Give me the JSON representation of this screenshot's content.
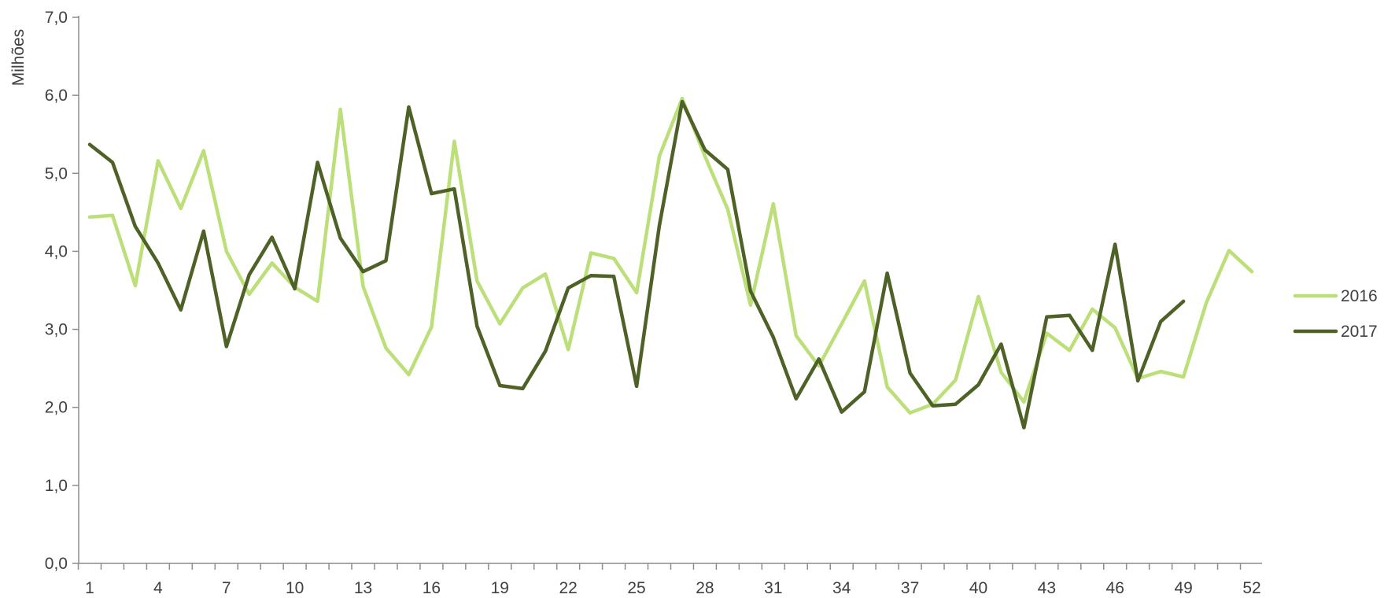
{
  "chart_data": {
    "type": "line",
    "title": "",
    "xlabel": "",
    "ylabel": "Milhões",
    "ylim": [
      0,
      7
    ],
    "y_ticks": [
      "0,0",
      "1,0",
      "2,0",
      "3,0",
      "4,0",
      "5,0",
      "6,0",
      "7,0"
    ],
    "x_range": [
      1,
      52
    ],
    "x_tick_labels": [
      "1",
      "4",
      "7",
      "10",
      "13",
      "16",
      "19",
      "22",
      "25",
      "28",
      "31",
      "34",
      "37",
      "40",
      "43",
      "46",
      "49",
      "52"
    ],
    "grid": false,
    "legend_position": "right",
    "series": [
      {
        "name": "2016",
        "color": "#bcdf7a",
        "x": [
          1,
          2,
          3,
          4,
          5,
          6,
          7,
          8,
          9,
          10,
          11,
          12,
          13,
          14,
          15,
          16,
          17,
          18,
          19,
          20,
          21,
          22,
          23,
          24,
          25,
          26,
          27,
          28,
          29,
          30,
          31,
          32,
          33,
          34,
          35,
          36,
          37,
          38,
          39,
          40,
          41,
          42,
          43,
          44,
          45,
          46,
          47,
          48,
          49,
          50,
          51,
          52
        ],
        "values": [
          4.44,
          4.46,
          3.56,
          5.16,
          4.55,
          5.29,
          4.0,
          3.45,
          3.85,
          3.54,
          3.36,
          5.82,
          3.55,
          2.76,
          2.42,
          3.03,
          5.41,
          3.62,
          3.07,
          3.53,
          3.71,
          2.74,
          3.98,
          3.91,
          3.47,
          5.22,
          5.96,
          5.22,
          4.54,
          3.31,
          4.61,
          2.92,
          2.53,
          3.07,
          3.62,
          2.26,
          1.93,
          2.04,
          2.35,
          3.42,
          2.45,
          2.07,
          2.95,
          2.73,
          3.26,
          3.02,
          2.37,
          2.46,
          2.39,
          3.34,
          4.01,
          3.74
        ]
      },
      {
        "name": "2017",
        "color": "#4e6127",
        "x": [
          1,
          2,
          3,
          4,
          5,
          6,
          7,
          8,
          9,
          10,
          11,
          12,
          13,
          14,
          15,
          16,
          17,
          18,
          19,
          20,
          21,
          22,
          23,
          24,
          25,
          26,
          27,
          28,
          29,
          30,
          31,
          32,
          33,
          34,
          35,
          36,
          37,
          38,
          39,
          40,
          41,
          42,
          43,
          44,
          45,
          46,
          47,
          48,
          49
        ],
        "values": [
          5.37,
          5.14,
          4.32,
          3.85,
          3.25,
          4.26,
          2.78,
          3.7,
          4.18,
          3.52,
          5.14,
          4.17,
          3.74,
          3.88,
          5.85,
          4.74,
          4.8,
          3.04,
          2.28,
          2.24,
          2.72,
          3.53,
          3.69,
          3.68,
          2.27,
          4.33,
          5.92,
          5.3,
          5.05,
          3.49,
          2.9,
          2.11,
          2.62,
          1.94,
          2.2,
          3.72,
          2.44,
          2.02,
          2.04,
          2.29,
          2.81,
          1.74,
          3.16,
          3.18,
          2.73,
          4.09,
          2.34,
          3.1,
          3.36
        ]
      }
    ]
  }
}
